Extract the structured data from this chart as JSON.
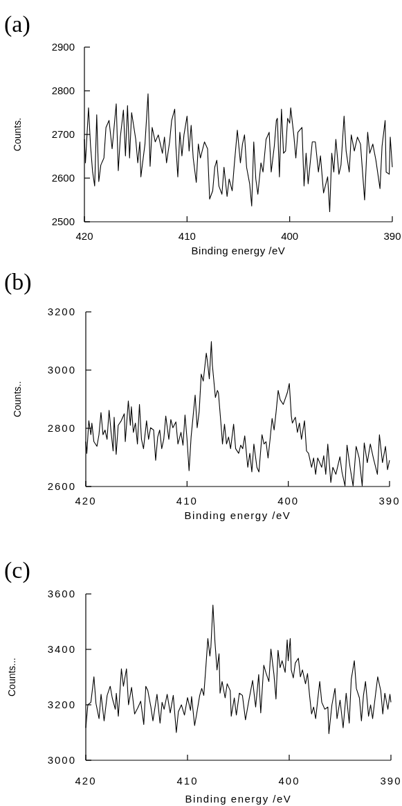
{
  "chart_data": [
    {
      "type": "line",
      "title": "(a)",
      "xlabel": "Binding energy /eV",
      "ylabel": "Counts.",
      "xlim": [
        420,
        390
      ],
      "ylim": [
        2500,
        2900
      ],
      "xticks": [
        420,
        410,
        400,
        390
      ],
      "yticks": [
        2500,
        2600,
        2700,
        2800,
        2900
      ],
      "grid": false,
      "marker": "none",
      "line_style": "solid",
      "series": [
        {
          "color": "#000000",
          "x": [
            420.0,
            419.9,
            419.6,
            419.4,
            419.2,
            419.0,
            418.8,
            418.6,
            418.4,
            418.1,
            417.9,
            417.6,
            417.3,
            416.9,
            416.7,
            416.5,
            416.2,
            416.0,
            415.8,
            415.6,
            415.4,
            415.0,
            414.8,
            414.6,
            414.5,
            414.1,
            413.8,
            413.6,
            413.4,
            413.1,
            412.8,
            412.4,
            412.2,
            412.0,
            411.7,
            411.5,
            411.2,
            411.1,
            410.9,
            410.7,
            410.5,
            410.3,
            410.0,
            409.8,
            409.6,
            409.4,
            409.1,
            408.9,
            408.7,
            408.3,
            408.0,
            407.8,
            407.5,
            407.3,
            407.1,
            406.9,
            406.6,
            406.4,
            406.1,
            405.9,
            405.6,
            405.4,
            405.1,
            404.8,
            404.6,
            404.4,
            404.2,
            403.9,
            403.7,
            403.5,
            403.3,
            403.1,
            402.8,
            402.6,
            402.3,
            402.0,
            401.8,
            401.5,
            401.3,
            401.2,
            401.0,
            400.8,
            400.6,
            400.4,
            400.2,
            400.0,
            399.9,
            399.6,
            399.4,
            399.2,
            398.8,
            398.6,
            398.4,
            398.2,
            397.8,
            397.5,
            397.2,
            397.0,
            396.7,
            396.3,
            396.1,
            395.9,
            395.7,
            395.5,
            395.2,
            395.0,
            394.7,
            394.5,
            394.2,
            394.0,
            393.7,
            393.4,
            393.1,
            392.8,
            392.7,
            392.4,
            392.2,
            391.9,
            391.6,
            391.2,
            391.0,
            390.7,
            390.6,
            390.3,
            390.2,
            390.0
          ],
          "values": [
            2689,
            2635,
            2761,
            2673,
            2614,
            2582,
            2745,
            2592,
            2630,
            2646,
            2716,
            2732,
            2667,
            2770,
            2617,
            2694,
            2756,
            2651,
            2766,
            2646,
            2750,
            2689,
            2635,
            2683,
            2603,
            2678,
            2793,
            2627,
            2716,
            2683,
            2699,
            2657,
            2694,
            2635,
            2683,
            2732,
            2758,
            2678,
            2603,
            2705,
            2651,
            2699,
            2742,
            2662,
            2721,
            2646,
            2590,
            2678,
            2646,
            2683,
            2667,
            2552,
            2571,
            2625,
            2641,
            2582,
            2563,
            2625,
            2558,
            2598,
            2571,
            2630,
            2710,
            2635,
            2678,
            2699,
            2625,
            2587,
            2536,
            2683,
            2598,
            2563,
            2635,
            2614,
            2689,
            2705,
            2614,
            2673,
            2732,
            2737,
            2603,
            2758,
            2657,
            2662,
            2737,
            2726,
            2761,
            2699,
            2646,
            2705,
            2716,
            2582,
            2657,
            2587,
            2683,
            2683,
            2614,
            2651,
            2566,
            2603,
            2523,
            2657,
            2614,
            2689,
            2609,
            2630,
            2742,
            2662,
            2614,
            2699,
            2662,
            2694,
            2678,
            2582,
            2550,
            2705,
            2657,
            2678,
            2641,
            2576,
            2673,
            2732,
            2614,
            2609,
            2694,
            2625
          ]
        }
      ]
    },
    {
      "type": "line",
      "title": "(b)",
      "xlabel": "Binding energy /eV",
      "ylabel": "Counts..",
      "xlim": [
        420,
        390
      ],
      "ylim": [
        2600,
        3200
      ],
      "xticks": [
        420,
        410,
        400,
        390
      ],
      "yticks": [
        2600,
        2800,
        3000,
        3200
      ],
      "grid": false,
      "marker": "none",
      "line_style": "solid",
      "series": [
        {
          "color": "#000000",
          "x": [
            420.0,
            419.9,
            419.7,
            419.5,
            419.4,
            419.2,
            418.9,
            418.7,
            418.5,
            418.3,
            418.1,
            417.9,
            417.7,
            417.5,
            417.3,
            417.2,
            417.0,
            416.8,
            416.5,
            416.2,
            416.1,
            415.8,
            415.6,
            415.5,
            415.3,
            415.1,
            414.9,
            414.7,
            414.5,
            414.3,
            414.0,
            413.8,
            413.6,
            413.3,
            413.1,
            412.9,
            412.7,
            412.5,
            412.3,
            412.1,
            411.8,
            411.6,
            411.4,
            411.1,
            410.9,
            410.6,
            410.4,
            410.2,
            410.0,
            409.8,
            409.6,
            409.4,
            409.2,
            409.0,
            408.8,
            408.6,
            408.4,
            408.1,
            408.0,
            407.8,
            407.6,
            407.5,
            407.2,
            407.0,
            406.9,
            406.6,
            406.5,
            406.3,
            406.1,
            405.9,
            405.7,
            405.4,
            405.2,
            404.9,
            404.7,
            404.5,
            404.3,
            404.0,
            403.8,
            403.6,
            403.4,
            403.1,
            402.9,
            402.6,
            402.4,
            402.2,
            402.0,
            401.8,
            401.6,
            401.4,
            401.2,
            401.0,
            400.8,
            400.5,
            400.1,
            399.9,
            399.7,
            399.6,
            399.3,
            399.1,
            398.9,
            398.7,
            398.4,
            398.2,
            398.0,
            397.7,
            397.5,
            397.3,
            397.1,
            396.7,
            396.5,
            396.3,
            396.1,
            395.8,
            395.6,
            395.3,
            394.9,
            394.7,
            394.4,
            394.2,
            393.9,
            393.6,
            393.3,
            393.0,
            392.7,
            392.5,
            392.2,
            391.9,
            391.6,
            391.2,
            391.0,
            390.7,
            390.4,
            390.2,
            390.0
          ],
          "values": [
            2754,
            2714,
            2826,
            2778,
            2818,
            2754,
            2738,
            2778,
            2854,
            2778,
            2794,
            2762,
            2862,
            2786,
            2722,
            2838,
            2710,
            2810,
            2826,
            2850,
            2754,
            2894,
            2810,
            2874,
            2786,
            2818,
            2746,
            2882,
            2762,
            2730,
            2826,
            2762,
            2802,
            2794,
            2690,
            2770,
            2794,
            2730,
            2762,
            2842,
            2762,
            2830,
            2802,
            2822,
            2746,
            2786,
            2742,
            2846,
            2762,
            2654,
            2770,
            2842,
            2914,
            2802,
            2858,
            2986,
            2962,
            3058,
            3034,
            2970,
            3098,
            3018,
            2906,
            2930,
            2922,
            2794,
            2746,
            2814,
            2746,
            2770,
            2730,
            2814,
            2730,
            2714,
            2742,
            2730,
            2774,
            2666,
            2714,
            2650,
            2746,
            2666,
            2650,
            2778,
            2746,
            2754,
            2698,
            2762,
            2834,
            2794,
            2858,
            2930,
            2898,
            2882,
            2922,
            2954,
            2842,
            2818,
            2838,
            2786,
            2818,
            2762,
            2826,
            2722,
            2714,
            2666,
            2698,
            2642,
            2698,
            2666,
            2706,
            2642,
            2746,
            2614,
            2666,
            2642,
            2702,
            2650,
            2602,
            2742,
            2666,
            2602,
            2738,
            2698,
            2602,
            2750,
            2682,
            2746,
            2698,
            2642,
            2778,
            2682,
            2738,
            2658,
            2690
          ]
        }
      ]
    },
    {
      "type": "line",
      "title": "(c)",
      "xlabel": "Binding energy /eV",
      "ylabel": "Counts...",
      "xlim": [
        420,
        390
      ],
      "ylim": [
        3000,
        3600
      ],
      "xticks": [
        420,
        410,
        400,
        390
      ],
      "yticks": [
        3000,
        3200,
        3400,
        3600
      ],
      "grid": false,
      "marker": "none",
      "line_style": "solid",
      "series": [
        {
          "color": "#000000",
          "x": [
            420.0,
            419.8,
            419.5,
            419.2,
            419.0,
            418.7,
            418.5,
            418.2,
            417.9,
            417.6,
            417.4,
            417.1,
            417.0,
            416.8,
            416.5,
            416.3,
            416.0,
            415.8,
            415.5,
            415.2,
            414.9,
            414.6,
            414.3,
            414.1,
            413.9,
            413.6,
            413.4,
            413.0,
            412.7,
            412.5,
            412.3,
            412.0,
            411.7,
            411.4,
            411.1,
            410.9,
            410.6,
            410.3,
            410.0,
            409.7,
            409.6,
            409.3,
            409.1,
            408.8,
            408.6,
            408.4,
            408.2,
            408.0,
            407.8,
            407.7,
            407.5,
            407.3,
            407.1,
            406.9,
            406.8,
            406.6,
            406.3,
            406.1,
            405.8,
            405.7,
            405.4,
            405.2,
            404.9,
            404.6,
            404.3,
            404.0,
            403.6,
            403.3,
            403.0,
            402.8,
            402.5,
            402.3,
            402.0,
            401.8,
            401.5,
            401.3,
            401.1,
            400.9,
            400.7,
            400.4,
            400.2,
            400.1,
            399.9,
            399.8,
            399.6,
            399.4,
            399.1,
            398.9,
            398.7,
            398.4,
            398.2,
            398.0,
            397.8,
            397.6,
            397.4,
            397.0,
            396.8,
            396.5,
            396.2,
            396.1,
            395.8,
            395.5,
            395.3,
            395.0,
            394.7,
            394.4,
            394.1,
            393.9,
            393.6,
            393.4,
            393.1,
            392.9,
            392.7,
            392.5,
            392.2,
            392.0,
            391.8,
            391.5,
            391.3,
            391.0,
            390.8,
            390.6,
            390.3,
            390.1,
            390.0
          ],
          "values": [
            3117,
            3200,
            3209,
            3301,
            3205,
            3150,
            3238,
            3142,
            3234,
            3267,
            3225,
            3184,
            3242,
            3159,
            3330,
            3267,
            3330,
            3200,
            3263,
            3167,
            3188,
            3213,
            3129,
            3267,
            3251,
            3192,
            3142,
            3238,
            3134,
            3209,
            3184,
            3238,
            3171,
            3234,
            3100,
            3175,
            3200,
            3163,
            3226,
            3180,
            3230,
            3125,
            3167,
            3234,
            3259,
            3234,
            3334,
            3439,
            3376,
            3409,
            3560,
            3426,
            3326,
            3384,
            3242,
            3284,
            3225,
            3276,
            3251,
            3159,
            3225,
            3163,
            3242,
            3234,
            3146,
            3209,
            3288,
            3192,
            3309,
            3171,
            3343,
            3317,
            3284,
            3401,
            3309,
            3221,
            3397,
            3334,
            3359,
            3317,
            3434,
            3359,
            3439,
            3326,
            3297,
            3351,
            3368,
            3301,
            3326,
            3276,
            3313,
            3234,
            3167,
            3192,
            3150,
            3284,
            3209,
            3184,
            3192,
            3096,
            3200,
            3259,
            3150,
            3217,
            3117,
            3242,
            3134,
            3292,
            3359,
            3259,
            3225,
            3142,
            3234,
            3284,
            3159,
            3200,
            3150,
            3242,
            3301,
            3251,
            3167,
            3242,
            3184,
            3238,
            3209
          ]
        }
      ]
    }
  ]
}
